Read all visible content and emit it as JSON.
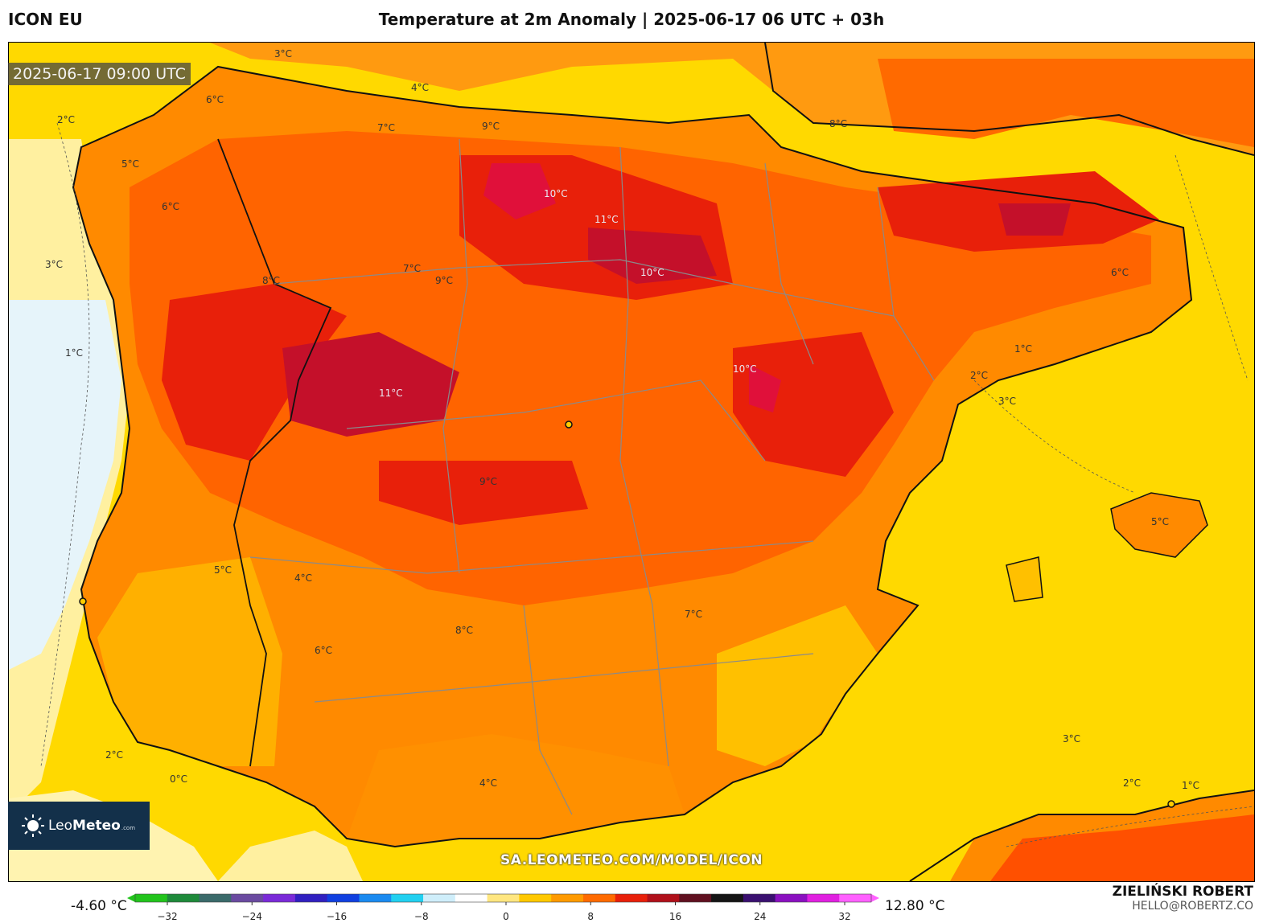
{
  "header": {
    "model": "ICON EU",
    "title": "Temperature at 2m Anomaly | 2025-06-17 06 UTC + 03h"
  },
  "map": {
    "valid_time": "2025-06-17 09:00 UTC",
    "watermark": "SA.LEOMETEO.COM/MODEL/ICON",
    "contour_labels": [
      "3°C",
      "2°C",
      "4°C",
      "6°C",
      "7°C",
      "8°C",
      "9°C",
      "10°C",
      "11°C",
      "10°C",
      "11°C",
      "9°C",
      "8°C",
      "7°C",
      "6°C",
      "5°C",
      "4°C",
      "3°C",
      "2°C",
      "1°C",
      "0°C",
      "5°C",
      "6°C",
      "7°C",
      "9°C",
      "10°C",
      "8°C",
      "6°C",
      "3°C",
      "2°C",
      "1°C",
      "4°C",
      "5°C",
      "3°C",
      "2°C",
      "1°C"
    ]
  },
  "logo": {
    "brand_light": "Leo",
    "brand_bold": "Meteo",
    "domain": ".com"
  },
  "colorbar": {
    "min_label": "-4.60 °C",
    "max_label": "12.80 °C",
    "ticks": [
      "−32",
      "−24",
      "−16",
      "−8",
      "0",
      "8",
      "16",
      "24",
      "32"
    ],
    "colors": [
      "#22c41c",
      "#1e8a3a",
      "#3a6a6a",
      "#6a4aa0",
      "#7a2ad8",
      "#3020c0",
      "#1040e0",
      "#1a8af0",
      "#22d0f0",
      "#cfeefa",
      "#ffffff",
      "#ffe680",
      "#ffc800",
      "#ff9a00",
      "#ff6a00",
      "#e8200a",
      "#b0101a",
      "#601020",
      "#151515",
      "#3a1070",
      "#8a10c0",
      "#e020e0",
      "#ff60ff"
    ]
  },
  "author": {
    "name": "ZIELIŃSKI ROBERT",
    "email": "HELLO@ROBERTZ.CO"
  },
  "colors": {
    "sea": "#ffd900",
    "land_warm": "#ff7e00",
    "land_hot": "#e8200a",
    "land_peak": "#c4102a",
    "coastline": "#111111",
    "borders": "#8a8a8a"
  }
}
